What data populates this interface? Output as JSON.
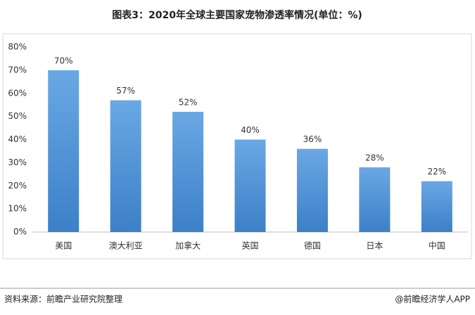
{
  "chart_data": {
    "type": "bar",
    "title": "图表3：2020年全球主要国家宠物渗透率情况(单位：%)",
    "categories": [
      "美国",
      "澳大利亚",
      "加拿大",
      "英国",
      "德国",
      "日本",
      "中国"
    ],
    "values": [
      70,
      57,
      52,
      40,
      36,
      28,
      22
    ],
    "value_labels": [
      "70%",
      "57%",
      "52%",
      "40%",
      "36%",
      "28%",
      "22%"
    ],
    "color": "#4a8fd4",
    "ylim": [
      0,
      80
    ],
    "yticks": [
      {
        "value": 0,
        "label": "0%"
      },
      {
        "value": 10,
        "label": "10%"
      },
      {
        "value": 20,
        "label": "20%"
      },
      {
        "value": 30,
        "label": "30%"
      },
      {
        "value": 40,
        "label": "40%"
      },
      {
        "value": 50,
        "label": "50%"
      },
      {
        "value": 60,
        "label": "60%"
      },
      {
        "value": 70,
        "label": "70%"
      },
      {
        "value": 80,
        "label": "80%"
      }
    ],
    "grid": false,
    "source": "资料来源：前瞻产业研究院整理",
    "credit": "@前瞻经济学人APP"
  }
}
